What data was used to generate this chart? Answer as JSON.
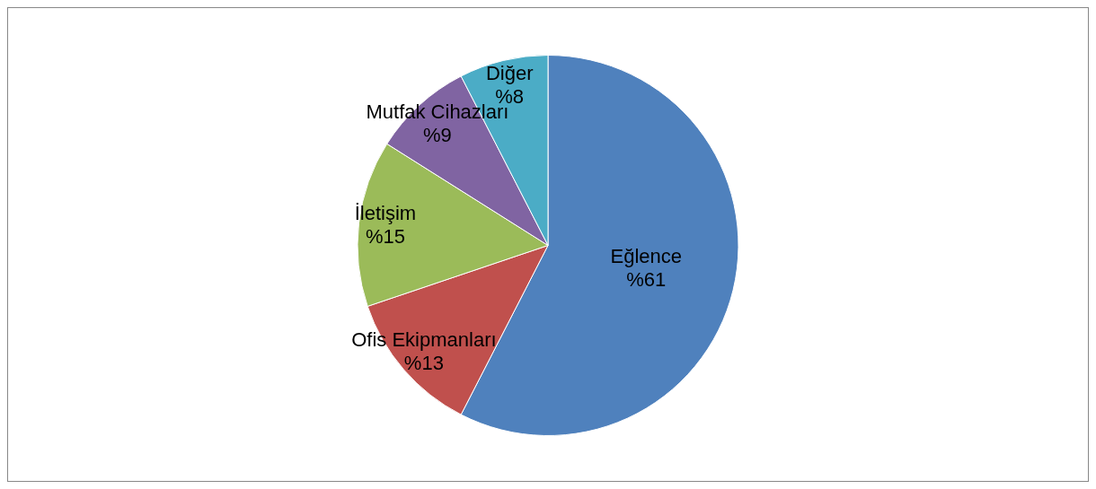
{
  "chart_data": {
    "type": "pie",
    "categories": [
      "Eğlence",
      "Ofis Ekipmanları",
      "İletişim",
      "Mutfak Cihazları",
      "Diğer"
    ],
    "values": [
      61,
      13,
      15,
      9,
      8
    ],
    "value_labels": [
      "%61",
      "%13",
      "%15",
      "%9",
      "%8"
    ],
    "colors": [
      "#4f81bd",
      "#c0504d",
      "#9bbb59",
      "#8064a2",
      "#4bacc6"
    ],
    "legend": false
  }
}
